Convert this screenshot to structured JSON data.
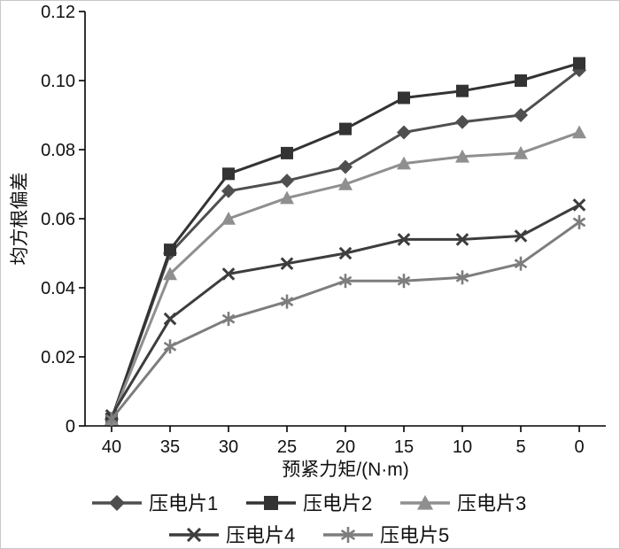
{
  "chart_data": {
    "type": "line",
    "title": "",
    "xlabel": "预紧力矩/(N·m)",
    "ylabel": "均方根偏差",
    "x": [
      "40",
      "35",
      "30",
      "25",
      "20",
      "15",
      "10",
      "5",
      "0"
    ],
    "ylim": [
      0,
      0.12
    ],
    "yticks": [
      {
        "v": 0.0,
        "label": "0"
      },
      {
        "v": 0.02,
        "label": "0.02"
      },
      {
        "v": 0.04,
        "label": "0.04"
      },
      {
        "v": 0.06,
        "label": "0.06"
      },
      {
        "v": 0.08,
        "label": "0.08"
      },
      {
        "v": 0.1,
        "label": "0.10"
      },
      {
        "v": 0.12,
        "label": "0.12"
      }
    ],
    "grid": false,
    "legend_position": "bottom",
    "series": [
      {
        "name": "压电片1",
        "marker": "diamond",
        "color": "#4f4f4f",
        "values": [
          0.002,
          0.05,
          0.068,
          0.071,
          0.075,
          0.085,
          0.088,
          0.09,
          0.103
        ]
      },
      {
        "name": "压电片2",
        "marker": "square",
        "color": "#333333",
        "values": [
          0.002,
          0.051,
          0.073,
          0.079,
          0.086,
          0.095,
          0.097,
          0.1,
          0.105
        ]
      },
      {
        "name": "压电片3",
        "marker": "triangle",
        "color": "#8f8f8f",
        "values": [
          0.002,
          0.044,
          0.06,
          0.066,
          0.07,
          0.076,
          0.078,
          0.079,
          0.085
        ]
      },
      {
        "name": "压电片4",
        "marker": "x",
        "color": "#3d3d3d",
        "values": [
          0.003,
          0.031,
          0.044,
          0.047,
          0.05,
          0.054,
          0.054,
          0.055,
          0.064
        ]
      },
      {
        "name": "压电片5",
        "marker": "asterisk",
        "color": "#7d7d7d",
        "values": [
          0.002,
          0.023,
          0.031,
          0.036,
          0.042,
          0.042,
          0.043,
          0.047,
          0.059
        ]
      }
    ],
    "legend_rows": [
      [
        0,
        1,
        2
      ],
      [
        3,
        4
      ]
    ]
  }
}
